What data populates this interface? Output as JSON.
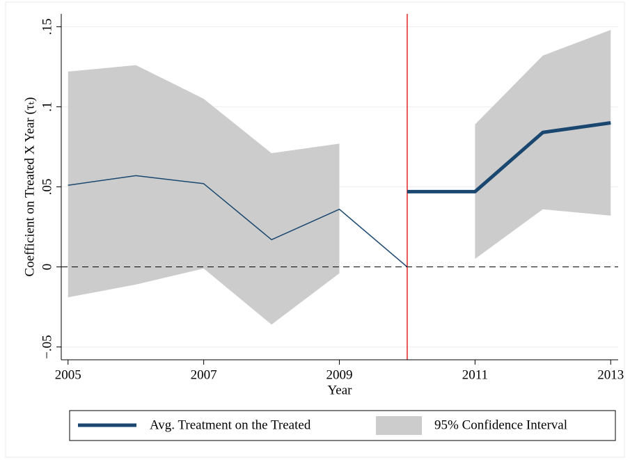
{
  "chart_data": {
    "type": "line",
    "x": [
      2005,
      2006,
      2007,
      2008,
      2009,
      2010,
      2011,
      2012,
      2013
    ],
    "series": [
      {
        "color": "#1a476f",
        "width": 1.5,
        "values": [
          0.051,
          0.057,
          0.052,
          0.017,
          0.036,
          0,
          null,
          null,
          null
        ]
      },
      {
        "name": "Avg. Treatment on the Treated",
        "color": "#1a476f",
        "width": 5,
        "values": [
          null,
          null,
          null,
          null,
          null,
          0.047,
          0.047,
          0.084,
          0.09
        ]
      }
    ],
    "band": {
      "name": "95% Confidence Interval",
      "color": "#cccccc",
      "upper": [
        0.122,
        0.126,
        0.105,
        0.071,
        0.077,
        null,
        0.089,
        0.132,
        0.148
      ],
      "lower": [
        -0.019,
        -0.011,
        -0.001,
        -0.036,
        -0.004,
        null,
        0.005,
        0.036,
        0.032
      ]
    },
    "xline": 2010,
    "xline_color": "#e00000",
    "yline": 0,
    "yline_dashed": true,
    "xlabel": "Year",
    "ylabel": "Coefficient on Treated X Year (τₜ)",
    "xlim": [
      2004.9,
      2013.11
    ],
    "xticks": [
      2005,
      2007,
      2009,
      2011,
      2013
    ],
    "ylim": [
      -0.058,
      0.158
    ],
    "yticks": [
      {
        "value": -0.05,
        "label": "−.05"
      },
      0,
      {
        "value": 0.05,
        "label": ".05"
      },
      {
        "value": 0.1,
        "label": ".1"
      },
      {
        "value": 0.15,
        "label": ".15"
      }
    ],
    "grid": true,
    "legend": "bottom"
  }
}
